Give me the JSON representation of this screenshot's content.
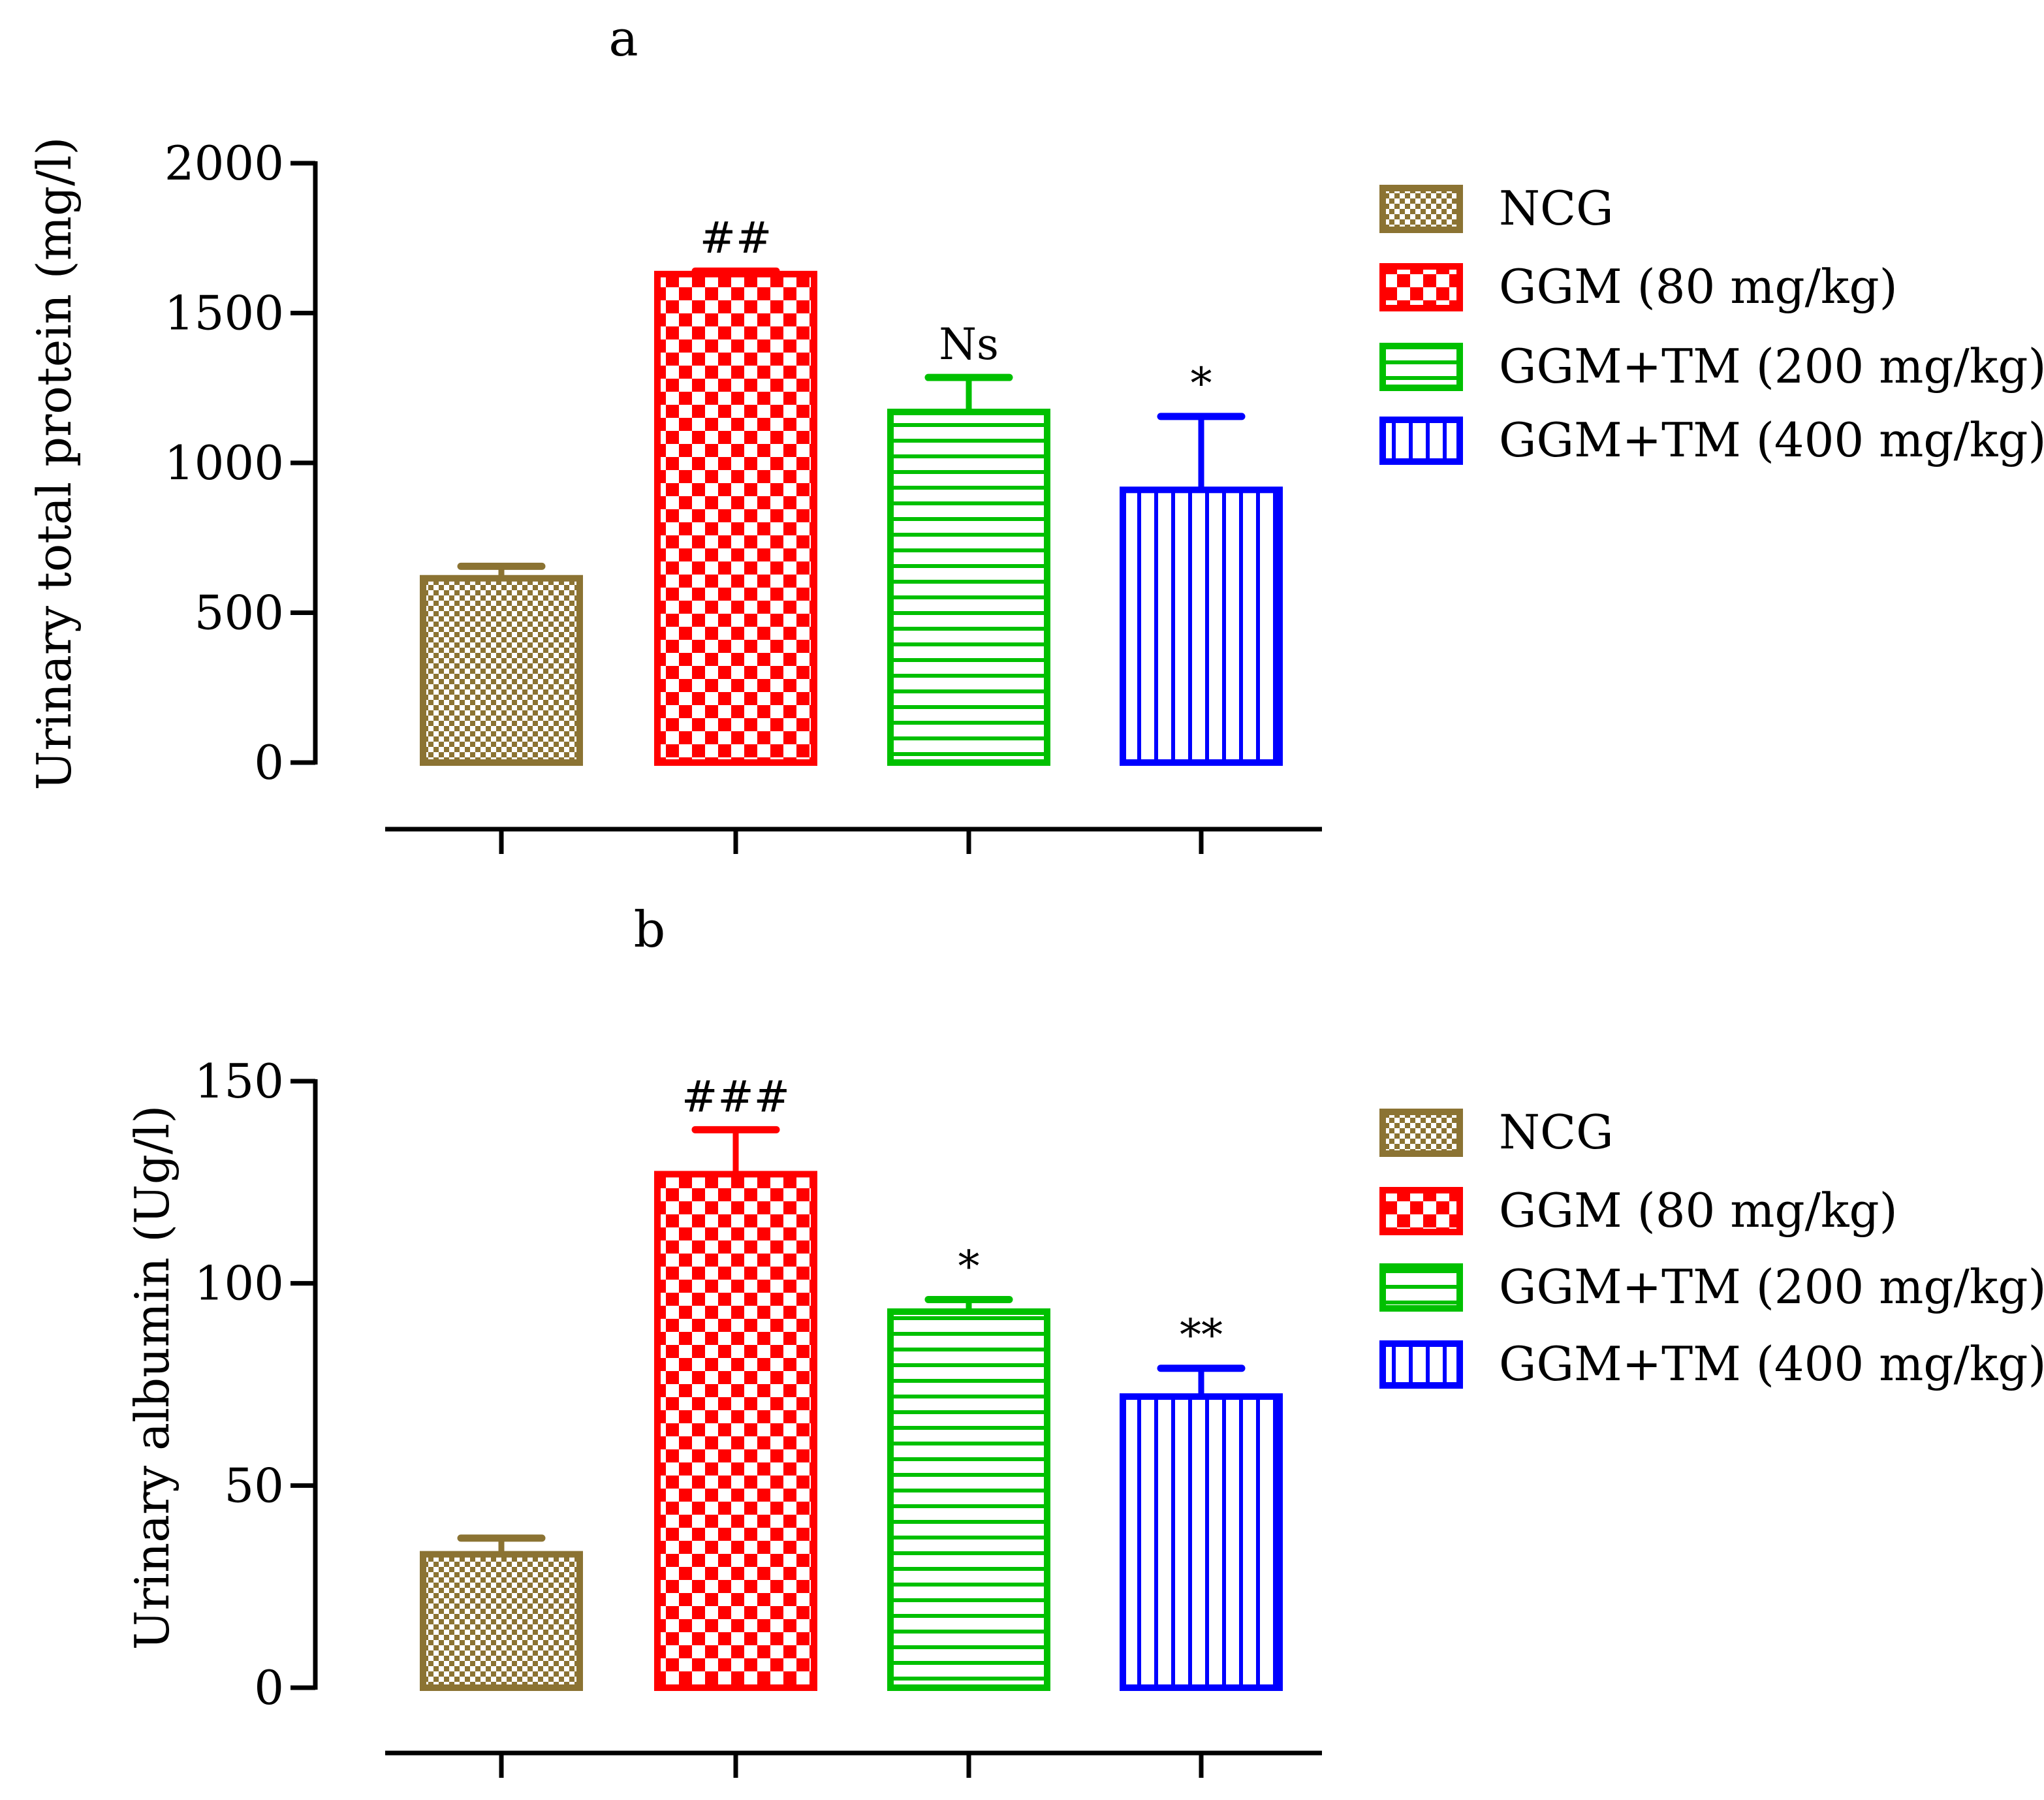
{
  "chart_data": [
    {
      "type": "bar",
      "panel_label": "a",
      "title": "",
      "xlabel": "",
      "ylabel": "Urinary total protein (mg/l)",
      "ylim": [
        0,
        2000
      ],
      "yticks": [
        0,
        500,
        1000,
        1500,
        2000
      ],
      "categories": [
        "NCG",
        "GGM (80 mg/kg)",
        "GGM+TM (200 mg/kg)",
        "GGM+TM (400 mg/kg)"
      ],
      "values": [
        615,
        1630,
        1170,
        910
      ],
      "errors": [
        40,
        10,
        115,
        245
      ],
      "significance": [
        "",
        "##",
        "Ns",
        "*"
      ],
      "legend": [
        "NCG",
        "GGM (80 mg/kg)",
        "GGM+TM (200 mg/kg)",
        "GGM+TM (400 mg/kg)"
      ],
      "legend_position": "right"
    },
    {
      "type": "bar",
      "panel_label": "b",
      "title": "",
      "xlabel": "",
      "ylabel": "Urinary albumin (Ug/l)",
      "ylim": [
        0,
        150
      ],
      "yticks": [
        0,
        50,
        100,
        150
      ],
      "categories": [
        "NCG",
        "GGM (80 mg/kg)",
        "GGM+TM (200 mg/kg)",
        "GGM+TM (400 mg/kg)"
      ],
      "values": [
        33,
        127,
        93,
        72
      ],
      "errors": [
        4,
        11,
        3,
        7
      ],
      "significance": [
        "",
        "###",
        "*",
        "**"
      ],
      "legend": [
        "NCG",
        "GGM (80 mg/kg)",
        "GGM+TM (200 mg/kg)",
        "GGM+TM (400 mg/kg)"
      ],
      "legend_position": "right"
    }
  ],
  "series_styles": [
    {
      "name": "NCG",
      "color": "#8b7333",
      "pattern": "fine-checker"
    },
    {
      "name": "GGM (80 mg/kg)",
      "color": "#ff0000",
      "pattern": "checker"
    },
    {
      "name": "GGM+TM (200 mg/kg)",
      "color": "#00c000",
      "pattern": "horizontal-lines"
    },
    {
      "name": "GGM+TM (400 mg/kg)",
      "color": "#0000ff",
      "pattern": "vertical-lines"
    }
  ]
}
